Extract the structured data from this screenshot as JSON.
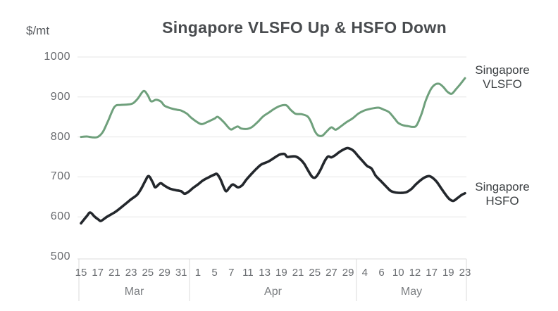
{
  "title": "Singapore VLSFO Up & HSFO Down",
  "unit_label": "$/mt",
  "colors": {
    "vlsfo_line": "#6FA07C",
    "hsfo_line": "#23272C",
    "gridline": "#E6E6E6",
    "axis_line": "#DBDBDB",
    "title_text": "#494C4F",
    "tick_text": "#6A6D71",
    "month_text": "#7A7D80",
    "legend_text": "#3C4043",
    "background": "#FFFFFF"
  },
  "chart_data": {
    "type": "line",
    "title": "Singapore VLSFO Up & HSFO Down",
    "ylabel": "$/mt",
    "ylim": [
      500,
      1000
    ],
    "grid": "horizontal",
    "legend_position": "right-of-line-ends",
    "y_ticks": [
      1000,
      900,
      800,
      700,
      600,
      500
    ],
    "x_axis": {
      "tick_labels": [
        "15",
        "17",
        "21",
        "23",
        "25",
        "29",
        "31",
        "1",
        "5",
        "7",
        "11",
        "13",
        "19",
        "21",
        "25",
        "27",
        "29",
        "4",
        "6",
        "10",
        "12",
        "17",
        "19",
        "23"
      ],
      "month_groups": [
        {
          "label": "Mar",
          "from": 0,
          "to": 6
        },
        {
          "label": "Apr",
          "from": 7,
          "to": 16
        },
        {
          "label": "May",
          "from": 17,
          "to": 23
        }
      ]
    },
    "series": [
      {
        "name": "Singapore VLSFO",
        "color": "#6FA07C",
        "stroke_width": 3,
        "values_at_ticks": [
          800,
          800,
          875,
          884,
          904,
          878,
          866,
          836,
          850,
          819,
          820,
          851,
          879,
          857,
          812,
          824,
          840,
          869,
          873,
          835,
          828,
          921,
          911,
          947
        ],
        "points": [
          [
            0,
            800
          ],
          [
            0.35,
            801
          ],
          [
            0.7,
            799
          ],
          [
            1,
            800
          ],
          [
            1.3,
            812
          ],
          [
            1.6,
            838
          ],
          [
            2,
            875
          ],
          [
            2.35,
            880
          ],
          [
            2.75,
            881
          ],
          [
            3.1,
            884
          ],
          [
            3.4,
            896
          ],
          [
            3.75,
            915
          ],
          [
            4,
            904
          ],
          [
            4.2,
            889
          ],
          [
            4.5,
            893
          ],
          [
            4.8,
            888
          ],
          [
            5,
            878
          ],
          [
            5.35,
            872
          ],
          [
            5.75,
            868
          ],
          [
            6,
            866
          ],
          [
            6.35,
            858
          ],
          [
            6.6,
            848
          ],
          [
            7,
            836
          ],
          [
            7.25,
            832
          ],
          [
            7.6,
            838
          ],
          [
            8,
            846
          ],
          [
            8.2,
            850
          ],
          [
            8.55,
            837
          ],
          [
            8.95,
            819
          ],
          [
            9.2,
            823
          ],
          [
            9.4,
            826
          ],
          [
            9.6,
            821
          ],
          [
            9.95,
            820
          ],
          [
            10.25,
            825
          ],
          [
            10.6,
            838
          ],
          [
            10.9,
            851
          ],
          [
            11.25,
            861
          ],
          [
            11.6,
            871
          ],
          [
            11.95,
            878
          ],
          [
            12.3,
            879
          ],
          [
            12.55,
            868
          ],
          [
            12.85,
            858
          ],
          [
            13.2,
            857
          ],
          [
            13.55,
            852
          ],
          [
            13.75,
            840
          ],
          [
            14,
            815
          ],
          [
            14.2,
            804
          ],
          [
            14.45,
            803
          ],
          [
            14.7,
            813
          ],
          [
            15,
            824
          ],
          [
            15.25,
            818
          ],
          [
            15.55,
            826
          ],
          [
            15.9,
            837
          ],
          [
            16.25,
            846
          ],
          [
            16.6,
            858
          ],
          [
            16.9,
            865
          ],
          [
            17.2,
            869
          ],
          [
            17.55,
            872
          ],
          [
            17.85,
            873
          ],
          [
            18.15,
            868
          ],
          [
            18.45,
            862
          ],
          [
            18.8,
            845
          ],
          [
            19,
            835
          ],
          [
            19.3,
            829
          ],
          [
            19.6,
            827
          ],
          [
            19.85,
            825
          ],
          [
            20.1,
            829
          ],
          [
            20.4,
            858
          ],
          [
            20.65,
            891
          ],
          [
            20.95,
            919
          ],
          [
            21.2,
            931
          ],
          [
            21.45,
            933
          ],
          [
            21.7,
            925
          ],
          [
            21.95,
            913
          ],
          [
            22.2,
            908
          ],
          [
            22.45,
            919
          ],
          [
            22.7,
            931
          ],
          [
            23,
            947
          ]
        ]
      },
      {
        "name": "Singapore HSFO",
        "color": "#23272C",
        "stroke_width": 3.6,
        "values_at_ticks": [
          584,
          593,
          611,
          644,
          702,
          678,
          664,
          681,
          706,
          678,
          696,
          738,
          757,
          746,
          700,
          750,
          772,
          733,
          688,
          660,
          681,
          699,
          647,
          659
        ],
        "points": [
          [
            0,
            584
          ],
          [
            0.35,
            602
          ],
          [
            0.55,
            611
          ],
          [
            0.8,
            601
          ],
          [
            1.05,
            593
          ],
          [
            1.2,
            590
          ],
          [
            1.55,
            600
          ],
          [
            2,
            611
          ],
          [
            2.3,
            620
          ],
          [
            2.65,
            632
          ],
          [
            3,
            644
          ],
          [
            3.35,
            655
          ],
          [
            3.6,
            670
          ],
          [
            3.85,
            690
          ],
          [
            4.05,
            702
          ],
          [
            4.3,
            686
          ],
          [
            4.45,
            674
          ],
          [
            4.75,
            684
          ],
          [
            5,
            678
          ],
          [
            5.3,
            671
          ],
          [
            5.65,
            667
          ],
          [
            6,
            664
          ],
          [
            6.2,
            658
          ],
          [
            6.45,
            663
          ],
          [
            6.7,
            672
          ],
          [
            7,
            681
          ],
          [
            7.3,
            691
          ],
          [
            7.65,
            699
          ],
          [
            8,
            706
          ],
          [
            8.15,
            707
          ],
          [
            8.35,
            694
          ],
          [
            8.55,
            674
          ],
          [
            8.7,
            664
          ],
          [
            8.9,
            674
          ],
          [
            9.1,
            681
          ],
          [
            9.4,
            674
          ],
          [
            9.65,
            679
          ],
          [
            9.9,
            693
          ],
          [
            10.2,
            707
          ],
          [
            10.5,
            720
          ],
          [
            10.8,
            731
          ],
          [
            11.2,
            738
          ],
          [
            11.55,
            747
          ],
          [
            11.85,
            755
          ],
          [
            12,
            757
          ],
          [
            12.2,
            757
          ],
          [
            12.35,
            750
          ],
          [
            12.6,
            751
          ],
          [
            12.85,
            751
          ],
          [
            13.1,
            745
          ],
          [
            13.35,
            734
          ],
          [
            13.6,
            716
          ],
          [
            13.85,
            700
          ],
          [
            14.05,
            699
          ],
          [
            14.3,
            714
          ],
          [
            14.6,
            740
          ],
          [
            14.8,
            751
          ],
          [
            15,
            749
          ],
          [
            15.25,
            755
          ],
          [
            15.5,
            763
          ],
          [
            15.8,
            770
          ],
          [
            16,
            772
          ],
          [
            16.3,
            766
          ],
          [
            16.6,
            752
          ],
          [
            16.9,
            738
          ],
          [
            17.15,
            727
          ],
          [
            17.4,
            721
          ],
          [
            17.65,
            703
          ],
          [
            18,
            688
          ],
          [
            18.3,
            675
          ],
          [
            18.55,
            665
          ],
          [
            18.85,
            661
          ],
          [
            19.2,
            660
          ],
          [
            19.5,
            662
          ],
          [
            19.8,
            670
          ],
          [
            20.05,
            681
          ],
          [
            20.35,
            692
          ],
          [
            20.6,
            699
          ],
          [
            20.85,
            702
          ],
          [
            21.05,
            698
          ],
          [
            21.3,
            688
          ],
          [
            21.55,
            673
          ],
          [
            21.8,
            658
          ],
          [
            22.05,
            645
          ],
          [
            22.3,
            640
          ],
          [
            22.55,
            647
          ],
          [
            22.8,
            655
          ],
          [
            23,
            659
          ]
        ]
      }
    ]
  }
}
